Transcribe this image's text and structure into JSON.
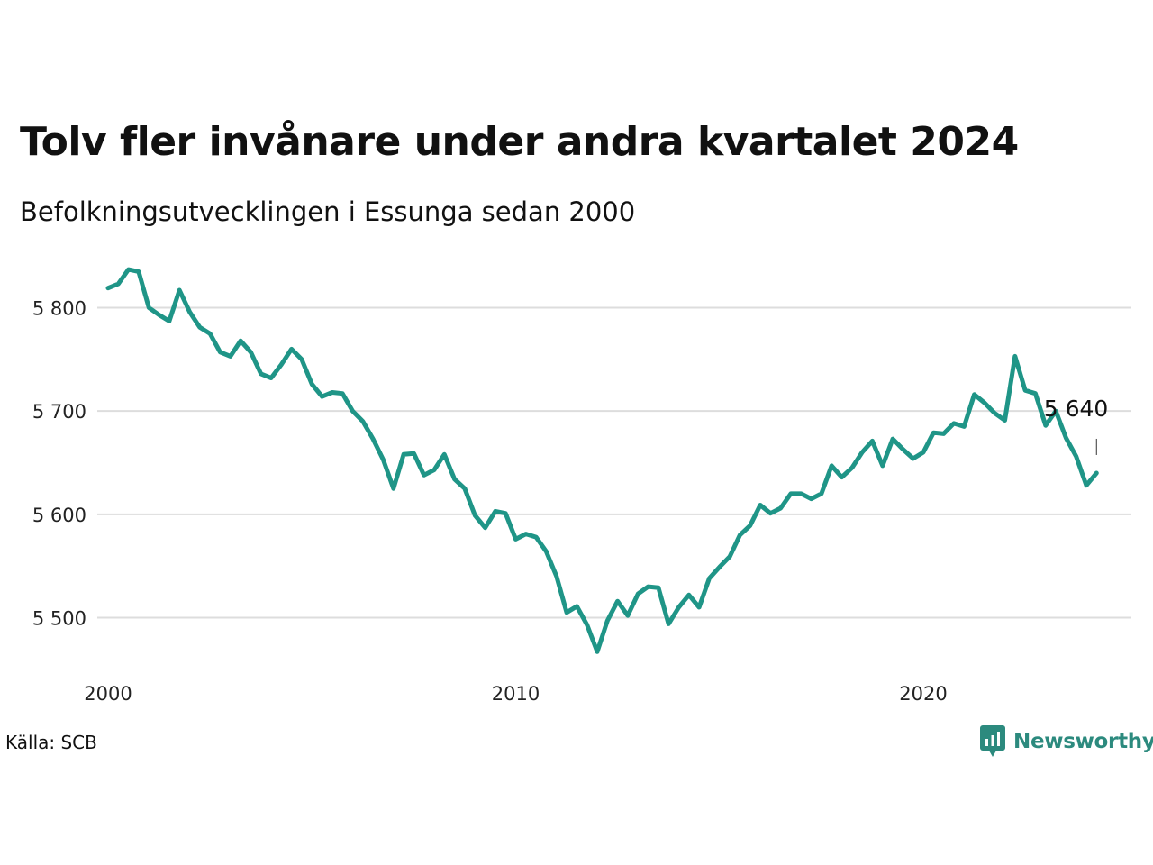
{
  "header": {
    "title": "Tolv fler invånare under andra kvartalet 2024",
    "subtitle": "Befolkningsutvecklingen i Essunga sedan 2000"
  },
  "footer": {
    "source": "Källa: SCB",
    "brand": "Newsworthy",
    "brand_icon": "newsworthy-logo-icon"
  },
  "colors": {
    "line": "#1f9587",
    "grid": "#dddddd",
    "brand": "#2c8a7e"
  },
  "chart_data": {
    "type": "line",
    "title": "Tolv fler invånare under andra kvartalet 2024",
    "subtitle": "Befolkningsutvecklingen i Essunga sedan 2000",
    "xlabel": "",
    "ylabel": "",
    "xlim": [
      2000,
      2025
    ],
    "ylim": [
      5450,
      5840
    ],
    "x_ticks": [
      2000,
      2010,
      2020
    ],
    "x_tick_labels": [
      "2000",
      "2010",
      "2020"
    ],
    "y_ticks": [
      5500,
      5600,
      5700,
      5800
    ],
    "y_tick_labels": [
      "5 500",
      "5 600",
      "5 700",
      "5 800"
    ],
    "grid": "horizontal",
    "annotation": {
      "label": "5 640",
      "x": 2024.25,
      "y": 5640
    },
    "series": [
      {
        "x": [
          2000.0,
          2000.25,
          2000.5,
          2000.75,
          2001.0,
          2001.25,
          2001.5,
          2001.75,
          2002.0,
          2002.25,
          2002.5,
          2002.75,
          2003.0,
          2003.25,
          2003.5,
          2003.75,
          2004.0,
          2004.25,
          2004.5,
          2004.75,
          2005.0,
          2005.25,
          2005.5,
          2005.75,
          2006.0,
          2006.25,
          2006.5,
          2006.75,
          2007.0,
          2007.25,
          2007.5,
          2007.75,
          2008.0,
          2008.25,
          2008.5,
          2008.75,
          2009.0,
          2009.25,
          2009.5,
          2009.75,
          2010.0,
          2010.25,
          2010.5,
          2010.75,
          2011.0,
          2011.25,
          2011.5,
          2011.75,
          2012.0,
          2012.25,
          2012.5,
          2012.75,
          2013.0,
          2013.25,
          2013.5,
          2013.75,
          2014.0,
          2014.25,
          2014.5,
          2014.75,
          2015.0,
          2015.25,
          2015.5,
          2015.75,
          2016.0,
          2016.25,
          2016.5,
          2016.75,
          2017.0,
          2017.25,
          2017.5,
          2017.75,
          2018.0,
          2018.25,
          2018.5,
          2018.75,
          2019.0,
          2019.25,
          2019.5,
          2019.75,
          2020.0,
          2020.25,
          2020.5,
          2020.75,
          2021.0,
          2021.25,
          2021.5,
          2021.75,
          2022.0,
          2022.25,
          2022.5,
          2022.75,
          2023.0,
          2023.25,
          2023.5,
          2023.75,
          2024.0,
          2024.25
        ],
        "values": [
          5819,
          5823,
          5837,
          5835,
          5800,
          5793,
          5787,
          5817,
          5796,
          5781,
          5775,
          5757,
          5753,
          5768,
          5757,
          5736,
          5732,
          5745,
          5760,
          5750,
          5726,
          5714,
          5718,
          5717,
          5700,
          5690,
          5673,
          5653,
          5625,
          5658,
          5659,
          5638,
          5643,
          5658,
          5634,
          5625,
          5599,
          5587,
          5603,
          5601,
          5576,
          5581,
          5578,
          5564,
          5540,
          5505,
          5511,
          5493,
          5467,
          5497,
          5516,
          5502,
          5523,
          5530,
          5529,
          5494,
          5510,
          5522,
          5510,
          5538,
          5549,
          5559,
          5580,
          5589,
          5609,
          5601,
          5606,
          5620,
          5620,
          5615,
          5620,
          5647,
          5636,
          5645,
          5660,
          5671,
          5647,
          5673,
          5663,
          5654,
          5660,
          5679,
          5678,
          5688,
          5685,
          5716,
          5708,
          5698,
          5691,
          5753,
          5720,
          5717,
          5686,
          5700,
          5674,
          5656,
          5628,
          5640
        ]
      }
    ]
  }
}
